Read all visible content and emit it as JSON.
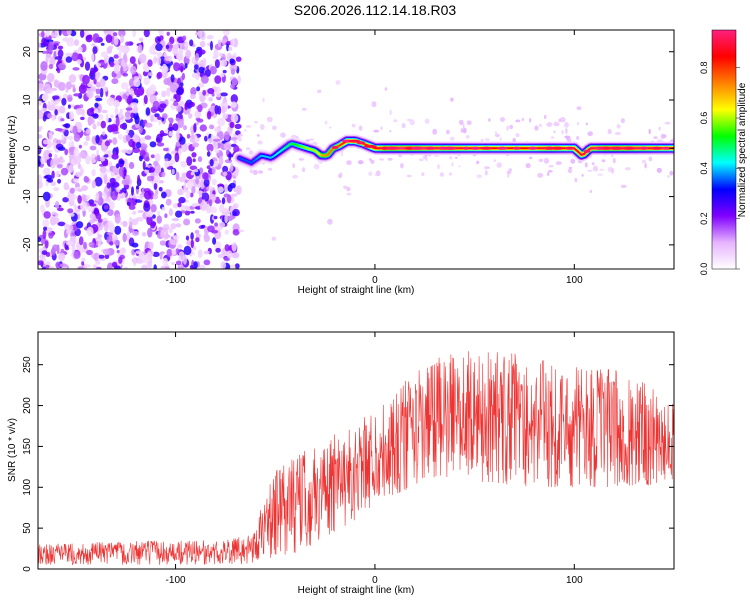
{
  "title": "S206.2026.112.14.18.R03",
  "chart_data": [
    {
      "type": "heatmap",
      "xlabel": "Height of straight line (km)",
      "ylabel": "Frequency (Hz)",
      "xlim": [
        -169,
        150
      ],
      "ylim": [
        -25,
        24.5
      ],
      "xticks": [
        -100,
        0,
        100
      ],
      "yticks": [
        -20,
        -10,
        0,
        10,
        20
      ],
      "colorbar": {
        "label": "Normalized spectral amplitude",
        "range": [
          0,
          0.95
        ],
        "ticks": [
          "0.0",
          "0.2",
          "0.4",
          "0.6",
          "0.8"
        ],
        "tick_values": [
          0,
          0.2,
          0.4,
          0.6,
          0.8
        ],
        "stops": [
          "#ffffff",
          "#e6b3ff",
          "#8000ff",
          "#0000ff",
          "#00ffff",
          "#00ff00",
          "#ffff00",
          "#ff8000",
          "#ff0000",
          "#ff2080"
        ]
      },
      "noise_region": {
        "x": [
          -169,
          -68
        ],
        "y": [
          -25,
          24.5
        ],
        "amplitude": [
          0.05,
          0.3
        ]
      },
      "ridge": {
        "x": [
          -68,
          -62,
          -57,
          -52,
          -47,
          -42,
          -38,
          -34,
          -30,
          -27,
          -24,
          -21,
          -18,
          -14,
          -10,
          -6,
          -3,
          0,
          5,
          10,
          20,
          30,
          40,
          50,
          60,
          70,
          80,
          85,
          90,
          95,
          100,
          104,
          108,
          115,
          125,
          135,
          150
        ],
        "freq": [
          -2,
          -3,
          -1.5,
          -2,
          -0.5,
          1,
          0.5,
          0,
          -0.5,
          -1.5,
          -1.5,
          0,
          0.5,
          1.5,
          1.5,
          1,
          0.5,
          0,
          0,
          0,
          0,
          0,
          0,
          0,
          0,
          0,
          0,
          0,
          0,
          0,
          0,
          -1.5,
          0,
          0,
          0,
          0,
          0
        ],
        "amplitude": [
          0.35,
          0.35,
          0.4,
          0.4,
          0.45,
          0.5,
          0.55,
          0.6,
          0.6,
          0.7,
          0.75,
          0.75,
          0.8,
          0.85,
          0.85,
          0.8,
          0.85,
          0.85,
          0.95,
          0.95,
          0.95,
          0.9,
          0.9,
          0.85,
          0.85,
          0.85,
          0.85,
          0.9,
          0.9,
          0.85,
          0.85,
          0.9,
          0.9,
          0.95,
          0.95,
          0.9,
          0.85
        ]
      }
    },
    {
      "type": "line",
      "xlabel": "Height of straight line (km)",
      "ylabel": "SNR (10 * v/v)",
      "xlim": [
        -169,
        150
      ],
      "ylim": [
        0,
        290
      ],
      "xticks": [
        -100,
        0,
        100
      ],
      "yticks": [
        0,
        50,
        100,
        150,
        200,
        250
      ],
      "series": [
        {
          "name": "SNR",
          "color": "#ee3333",
          "envelope_x": [
            -169,
            -120,
            -80,
            -65,
            -58,
            -50,
            -40,
            -30,
            -20,
            -10,
            0,
            10,
            20,
            30,
            40,
            60,
            80,
            100,
            120,
            135,
            150
          ],
          "envelope_lower": [
            5,
            5,
            5,
            5,
            10,
            15,
            20,
            30,
            45,
            60,
            80,
            90,
            100,
            110,
            110,
            105,
            100,
            100,
            100,
            100,
            110
          ],
          "envelope_upper": [
            30,
            35,
            35,
            40,
            70,
            120,
            140,
            150,
            165,
            180,
            195,
            220,
            240,
            260,
            265,
            270,
            260,
            250,
            245,
            230,
            210
          ]
        }
      ]
    }
  ]
}
